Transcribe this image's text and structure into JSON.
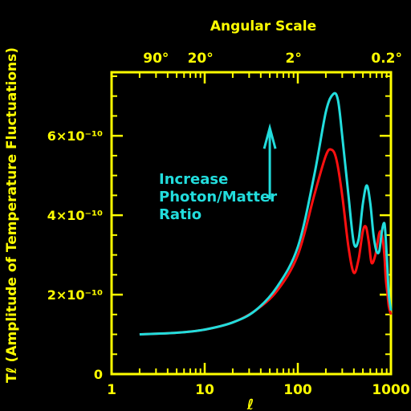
{
  "chart_data": {
    "type": "line",
    "title": "",
    "top_axis_label": "Angular Scale",
    "top_ticks": [
      {
        "x": 3,
        "label": "90°"
      },
      {
        "x": 9,
        "label": "20°"
      },
      {
        "x": 90,
        "label": "2°"
      },
      {
        "x": 900,
        "label": "0.2°"
      }
    ],
    "xlabel": "ℓ",
    "ylabel": "Tℓ (Amplitude of Temperature Fluctuations)",
    "xscale": "log",
    "xlim": [
      1,
      1000
    ],
    "ylim": [
      0,
      7.6e-10
    ],
    "xticks": [
      {
        "value": 1,
        "label": "1"
      },
      {
        "value": 10,
        "label": "10"
      },
      {
        "value": 100,
        "label": "100"
      },
      {
        "value": 1000,
        "label": "1000"
      }
    ],
    "yticks": [
      {
        "value": 0,
        "label": "0"
      },
      {
        "value": 2e-10,
        "label": "2×10⁻¹⁰"
      },
      {
        "value": 4e-10,
        "label": "4×10⁻¹⁰"
      },
      {
        "value": 6e-10,
        "label": "6×10⁻¹⁰"
      }
    ],
    "series": [
      {
        "color": "#ff1010",
        "x": [
          2,
          5,
          10,
          20,
          35,
          60,
          100,
          150,
          200,
          230,
          260,
          300,
          350,
          400,
          450,
          500,
          540,
          580,
          620,
          680,
          750,
          800,
          850,
          880,
          920,
          950,
          1000
        ],
        "y": [
          1e-10,
          1.04e-10,
          1.12e-10,
          1.3e-10,
          1.6e-10,
          2.1e-10,
          3e-10,
          4.5e-10,
          5.5e-10,
          5.65e-10,
          5.4e-10,
          4.5e-10,
          3.2e-10,
          2.55e-10,
          2.9e-10,
          3.6e-10,
          3.7e-10,
          3.3e-10,
          2.8e-10,
          3e-10,
          3.55e-10,
          3.5e-10,
          3e-10,
          2.4e-10,
          2e-10,
          1.7e-10,
          1.5e-10
        ]
      },
      {
        "color": "#22dddd",
        "x": [
          2,
          5,
          10,
          20,
          35,
          60,
          100,
          150,
          200,
          240,
          270,
          300,
          350,
          400,
          450,
          500,
          550,
          600,
          650,
          700,
          750,
          800,
          850,
          880,
          920,
          950,
          1000
        ],
        "y": [
          1e-10,
          1.04e-10,
          1.12e-10,
          1.3e-10,
          1.6e-10,
          2.2e-10,
          3.2e-10,
          5e-10,
          6.6e-10,
          7.05e-10,
          6.9e-10,
          6e-10,
          4.5e-10,
          3.3e-10,
          3.4e-10,
          4.3e-10,
          4.75e-10,
          4.3e-10,
          3.5e-10,
          3.1e-10,
          3.1e-10,
          3.6e-10,
          3.8e-10,
          3.4e-10,
          2.6e-10,
          2e-10,
          1.6e-10
        ]
      }
    ],
    "annotation": {
      "lines": [
        "Increase",
        "Photon/Matter",
        "Ratio"
      ],
      "color": "#22dddd",
      "arrow_x": 50,
      "arrow_y": [
        4.4e-10,
        6.2e-10
      ]
    },
    "axis_color": "#ffff00"
  }
}
